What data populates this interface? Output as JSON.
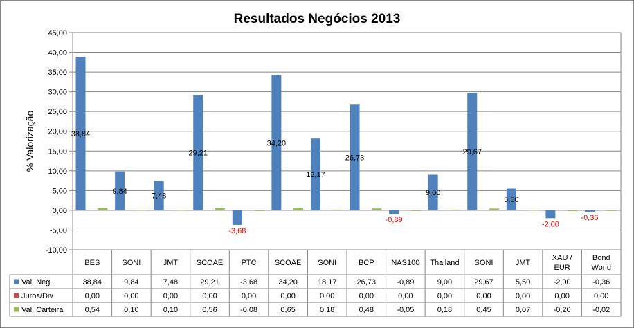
{
  "chart_data": {
    "type": "bar",
    "title": "Resultados Negócios 2013",
    "ylabel": "% Valorização",
    "xlabel": "",
    "ylim": [
      -10,
      45
    ],
    "ytick_step": 5,
    "ytick_labels": [
      "-10,00",
      "-5,00",
      "0,00",
      "5,00",
      "10,00",
      "15,00",
      "20,00",
      "25,00",
      "30,00",
      "35,00",
      "40,00",
      "45,00"
    ],
    "grid": true,
    "legend": "table-left",
    "categories": [
      "BES",
      "SONI",
      "JMT",
      "SCOAE",
      "PTC",
      "SCOAE",
      "SONI",
      "BCP",
      "NAS100",
      "Thailand",
      "SONI",
      "JMT",
      "XAU / EUR",
      "Bond World"
    ],
    "series": [
      {
        "name": "Val. Neg.",
        "color": "#4f81bd",
        "values": [
          38.84,
          9.84,
          7.48,
          29.21,
          -3.68,
          34.2,
          18.17,
          26.73,
          -0.89,
          9.0,
          29.67,
          5.5,
          -2.0,
          -0.36
        ],
        "display": [
          "38,84",
          "9,84",
          "7,48",
          "29,21",
          "-3,68",
          "34,20",
          "18,17",
          "26,73",
          "-0,89",
          "9,00",
          "29,67",
          "5,50",
          "-2,00",
          "-0,36"
        ]
      },
      {
        "name": "Juros/Div",
        "color": "#c0504d",
        "values": [
          0,
          0,
          0,
          0,
          0,
          0,
          0,
          0,
          0,
          0,
          0,
          0,
          0,
          0
        ],
        "display": [
          "0,00",
          "0,00",
          "0,00",
          "0,00",
          "0,00",
          "0,00",
          "0,00",
          "0,00",
          "0,00",
          "0,00",
          "0,00",
          "0,00",
          "0,00",
          "0,00"
        ]
      },
      {
        "name": "Val. Carteira",
        "color": "#9bbb59",
        "values": [
          0.54,
          0.1,
          0.1,
          0.56,
          -0.08,
          0.65,
          0.18,
          0.48,
          -0.05,
          0.18,
          0.45,
          0.07,
          -0.2,
          -0.02
        ],
        "display": [
          "0,54",
          "0,10",
          "0,10",
          "0,56",
          "-0,08",
          "0,65",
          "0,18",
          "0,48",
          "-0,05",
          "0,18",
          "0,45",
          "0,07",
          "-0,20",
          "-0,02"
        ]
      }
    ],
    "data_labels": {
      "series": "Val. Neg.",
      "positive_color": "#000000",
      "negative_color": "#ff0000"
    }
  }
}
